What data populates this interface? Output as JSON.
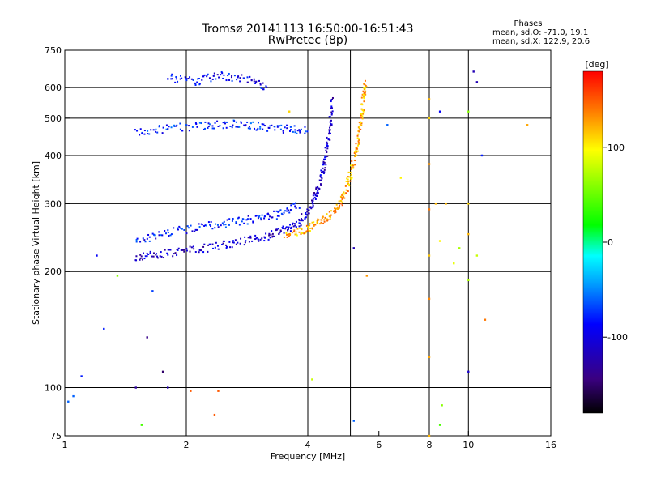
{
  "header": {
    "title_line1": "Tromsø 20141113 16:50:00-16:51:43",
    "title_line2": "RwPretec (8p)"
  },
  "stats": {
    "heading": "Phases",
    "line_o": "mean, sd,O: -71.0, 19.1",
    "line_x": "mean, sd,X: 122.9, 20.6"
  },
  "colorbar": {
    "unit_label": "[deg]",
    "ticks": [
      {
        "value": 100,
        "label": "100"
      },
      {
        "value": 0,
        "label": "0"
      },
      {
        "value": -100,
        "label": "-100"
      }
    ],
    "range": [
      -180,
      180
    ]
  },
  "chart_data": {
    "type": "scatter",
    "title": "Tromsø 20141113 16:50:00-16:51:43",
    "subtitle": "RwPretec (8p)",
    "xlabel": "Frequency [MHz]",
    "ylabel": "Stationary phase Virtual Height [km]",
    "x_scale": "log",
    "y_scale": "log",
    "xlim": [
      1,
      16
    ],
    "ylim": [
      75,
      750
    ],
    "x_ticks": [
      {
        "value": 1,
        "label": "1"
      },
      {
        "value": 2,
        "label": "2"
      },
      {
        "value": 4,
        "label": "4"
      },
      {
        "value": 6,
        "label": "6"
      },
      {
        "value": 8,
        "label": "8"
      },
      {
        "value": 10,
        "label": "10"
      },
      {
        "value": 16,
        "label": "16"
      }
    ],
    "y_ticks": [
      {
        "value": 75,
        "label": "75"
      },
      {
        "value": 100,
        "label": "100"
      },
      {
        "value": 200,
        "label": "200"
      },
      {
        "value": 300,
        "label": "300"
      },
      {
        "value": 400,
        "label": "400"
      },
      {
        "value": 500,
        "label": "500"
      },
      {
        "value": 600,
        "label": "600"
      },
      {
        "value": 750,
        "label": "750"
      }
    ],
    "x_gridlines": [
      2,
      4,
      5.1,
      8,
      10
    ],
    "y_gridlines": [
      100,
      200,
      300,
      400,
      500,
      600
    ],
    "color_by": "phase [deg]",
    "traces": [
      {
        "kind": "O-trace",
        "phase": -110,
        "points": [
          [
            1.5,
            218
          ],
          [
            1.7,
            221
          ],
          [
            2.0,
            226
          ],
          [
            2.4,
            233
          ],
          [
            2.8,
            240
          ],
          [
            3.2,
            248
          ],
          [
            3.5,
            256
          ],
          [
            3.8,
            268
          ],
          [
            4.05,
            290
          ],
          [
            4.2,
            320
          ],
          [
            4.35,
            360
          ],
          [
            4.45,
            410
          ],
          [
            4.55,
            480
          ],
          [
            4.6,
            560
          ]
        ]
      },
      {
        "kind": "X-trace",
        "phase": 125,
        "points": [
          [
            3.5,
            248
          ],
          [
            3.9,
            256
          ],
          [
            4.2,
            266
          ],
          [
            4.5,
            278
          ],
          [
            4.8,
            300
          ],
          [
            5.0,
            330
          ],
          [
            5.15,
            370
          ],
          [
            5.3,
            420
          ],
          [
            5.4,
            480
          ],
          [
            5.5,
            560
          ],
          [
            5.55,
            620
          ]
        ]
      },
      {
        "kind": "F2 spread lower band",
        "phase": -85,
        "points": [
          [
            1.5,
            240
          ],
          [
            1.8,
            252
          ],
          [
            2.2,
            262
          ],
          [
            2.6,
            268
          ],
          [
            3.0,
            274
          ],
          [
            3.4,
            282
          ],
          [
            3.8,
            300
          ]
        ]
      },
      {
        "kind": "multihop echo band",
        "phase": -80,
        "points": [
          [
            1.5,
            460
          ],
          [
            1.8,
            470
          ],
          [
            2.2,
            478
          ],
          [
            2.6,
            482
          ],
          [
            3.0,
            476
          ],
          [
            3.5,
            468
          ],
          [
            4.0,
            465
          ]
        ]
      },
      {
        "kind": "upper echoes",
        "phase": -95,
        "points": [
          [
            1.8,
            640
          ],
          [
            2.1,
            620
          ],
          [
            2.4,
            645
          ],
          [
            2.8,
            630
          ],
          [
            3.2,
            600
          ]
        ]
      }
    ],
    "scatter": [
      {
        "f": 8.0,
        "h": 560,
        "phase": 120
      },
      {
        "f": 8.0,
        "h": 500,
        "phase": 110
      },
      {
        "f": 8.0,
        "h": 380,
        "phase": 130
      },
      {
        "f": 8.0,
        "h": 290,
        "phase": 140
      },
      {
        "f": 8.0,
        "h": 220,
        "phase": 115
      },
      {
        "f": 8.0,
        "h": 170,
        "phase": 135
      },
      {
        "f": 8.0,
        "h": 120,
        "phase": 125
      },
      {
        "f": 8.0,
        "h": 75,
        "phase": 120
      },
      {
        "f": 8.3,
        "h": 300,
        "phase": 120
      },
      {
        "f": 8.5,
        "h": 520,
        "phase": -90
      },
      {
        "f": 8.5,
        "h": 240,
        "phase": 100
      },
      {
        "f": 8.6,
        "h": 90,
        "phase": 60
      },
      {
        "f": 8.5,
        "h": 80,
        "phase": 40
      },
      {
        "f": 10.0,
        "h": 520,
        "phase": 60
      },
      {
        "f": 10.0,
        "h": 300,
        "phase": 110
      },
      {
        "f": 10.0,
        "h": 250,
        "phase": 120
      },
      {
        "f": 10.0,
        "h": 190,
        "phase": 70
      },
      {
        "f": 10.0,
        "h": 110,
        "phase": -110
      },
      {
        "f": 10.3,
        "h": 660,
        "phase": -120
      },
      {
        "f": 10.5,
        "h": 620,
        "phase": -120
      },
      {
        "f": 10.5,
        "h": 220,
        "phase": 80
      },
      {
        "f": 10.8,
        "h": 400,
        "phase": -80
      },
      {
        "f": 11.0,
        "h": 150,
        "phase": 140
      },
      {
        "f": 14.0,
        "h": 480,
        "phase": 125
      },
      {
        "f": 8.8,
        "h": 300,
        "phase": 120
      },
      {
        "f": 9.2,
        "h": 210,
        "phase": 90
      },
      {
        "f": 9.5,
        "h": 230,
        "phase": 70
      },
      {
        "f": 6.3,
        "h": 480,
        "phase": -60
      },
      {
        "f": 6.8,
        "h": 350,
        "phase": 100
      },
      {
        "f": 5.2,
        "h": 230,
        "phase": -120
      },
      {
        "f": 5.2,
        "h": 82,
        "phase": -60
      },
      {
        "f": 5.6,
        "h": 195,
        "phase": 130
      },
      {
        "f": 1.05,
        "h": 95,
        "phase": -60
      },
      {
        "f": 1.02,
        "h": 92,
        "phase": -60
      },
      {
        "f": 1.1,
        "h": 107,
        "phase": -80
      },
      {
        "f": 1.25,
        "h": 142,
        "phase": -80
      },
      {
        "f": 1.2,
        "h": 220,
        "phase": -90
      },
      {
        "f": 1.35,
        "h": 195,
        "phase": 60
      },
      {
        "f": 1.5,
        "h": 100,
        "phase": -130
      },
      {
        "f": 1.55,
        "h": 80,
        "phase": 40
      },
      {
        "f": 1.6,
        "h": 135,
        "phase": -140
      },
      {
        "f": 1.75,
        "h": 110,
        "phase": -150
      },
      {
        "f": 1.8,
        "h": 100,
        "phase": -120
      },
      {
        "f": 2.05,
        "h": 98,
        "phase": 150
      },
      {
        "f": 2.4,
        "h": 98,
        "phase": 150
      },
      {
        "f": 2.35,
        "h": 85,
        "phase": 150
      },
      {
        "f": 3.6,
        "h": 520,
        "phase": 110
      },
      {
        "f": 4.1,
        "h": 105,
        "phase": 80
      },
      {
        "f": 1.65,
        "h": 178,
        "phase": -70
      }
    ]
  }
}
